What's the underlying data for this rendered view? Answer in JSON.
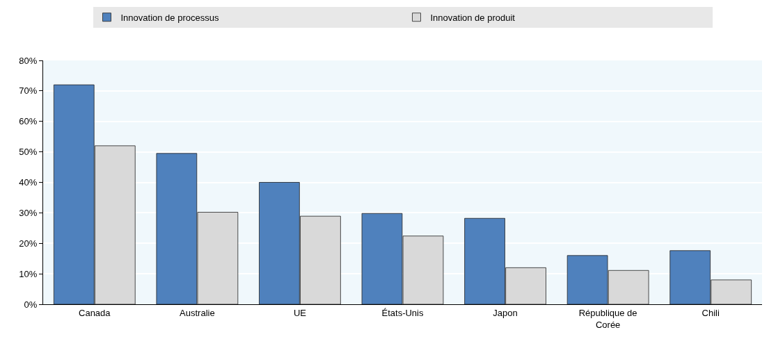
{
  "chart_data": {
    "type": "bar",
    "categories": [
      "Canada",
      "Australie",
      "UE",
      "États-Unis",
      "Japon",
      "République de Corée",
      "Chili"
    ],
    "series": [
      {
        "name": "Innovation de processus",
        "color": "#4f81bd",
        "values": [
          72,
          49.5,
          40,
          29.8,
          28.2,
          16,
          17.6
        ]
      },
      {
        "name": "Innovation de produit",
        "color": "#d9d9d9",
        "values": [
          52,
          30.2,
          28.9,
          22.4,
          12,
          11.1,
          8
        ]
      }
    ],
    "ylim": [
      0,
      80
    ],
    "yticks": [
      {
        "value": 0,
        "label": "0%"
      },
      {
        "value": 10,
        "label": "10%"
      },
      {
        "value": 20,
        "label": "20%"
      },
      {
        "value": 30,
        "label": "30%"
      },
      {
        "value": 40,
        "label": "40%"
      },
      {
        "value": 50,
        "label": "50%"
      },
      {
        "value": 60,
        "label": "60%"
      },
      {
        "value": 70,
        "label": "70%"
      },
      {
        "value": 80,
        "label": "80%"
      }
    ],
    "grid": "y",
    "legend": "top"
  }
}
